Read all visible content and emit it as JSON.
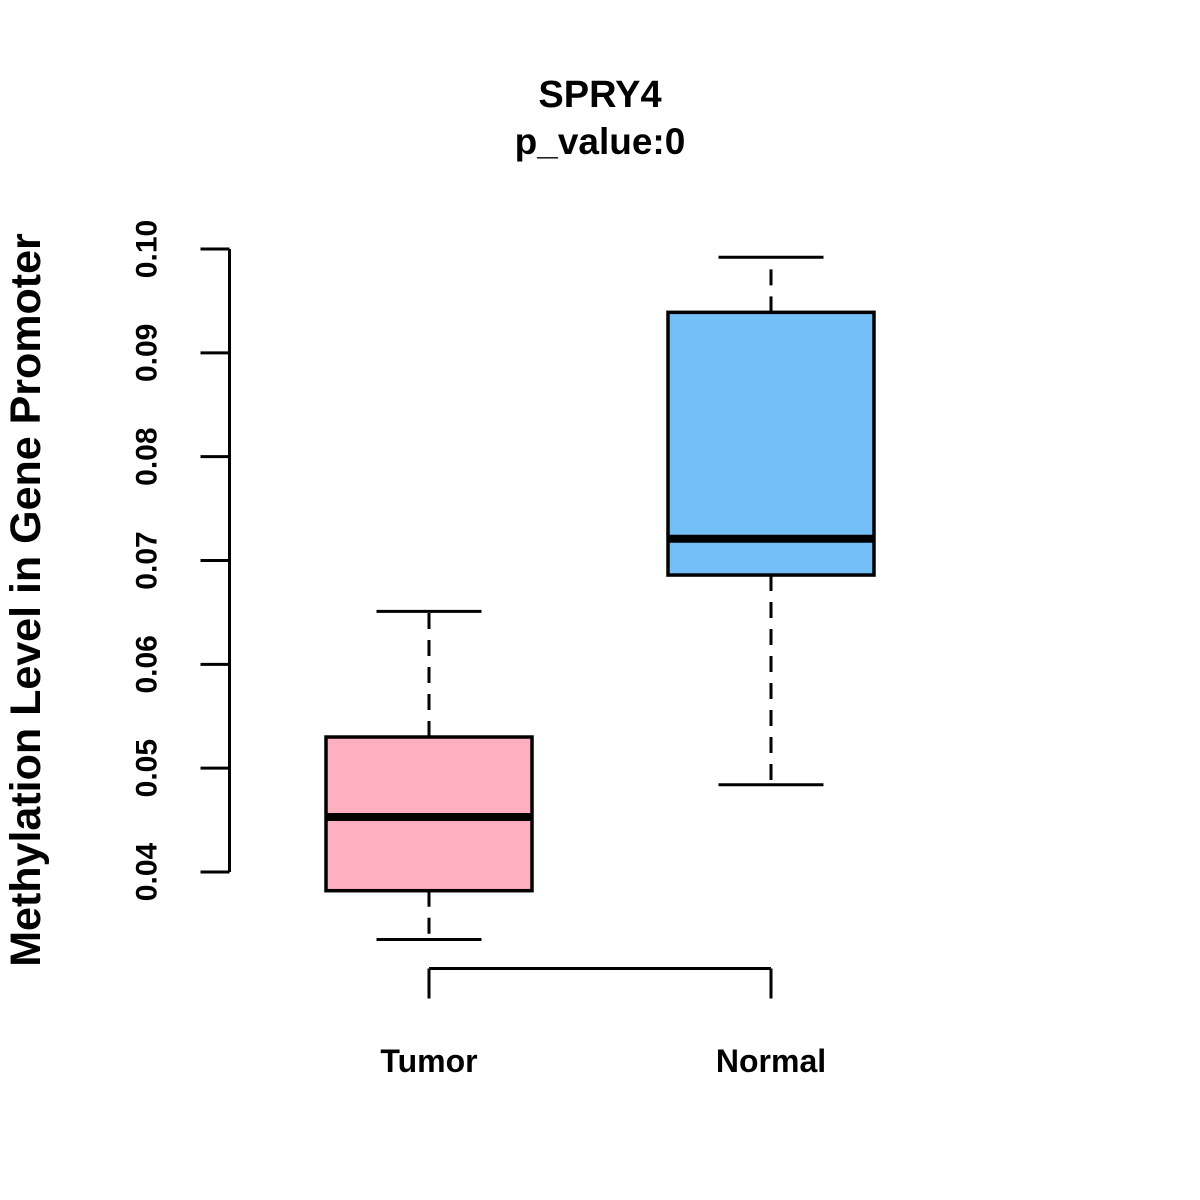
{
  "chart_data": {
    "type": "boxplot",
    "title": "SPRY4",
    "subtitle": "p_value:0",
    "ylabel": "Methylation Level in Gene Promoter",
    "xlabel": "",
    "categories": [
      "Tumor",
      "Normal"
    ],
    "series": [
      {
        "name": "Tumor",
        "fill": "#ffafc0",
        "whisker_low": 0.0335,
        "q1": 0.0382,
        "median": 0.0453,
        "q3": 0.053,
        "whisker_high": 0.0651,
        "outliers": []
      },
      {
        "name": "Normal",
        "fill": "#74bff7",
        "whisker_low": 0.0484,
        "q1": 0.0686,
        "median": 0.0721,
        "q3": 0.0939,
        "whisker_high": 0.0992,
        "outliers": []
      }
    ],
    "y_ticks": [
      0.04,
      0.05,
      0.06,
      0.07,
      0.08,
      0.09,
      0.1
    ],
    "y_tick_labels": [
      "0.04",
      "0.05",
      "0.06",
      "0.07",
      "0.08",
      "0.09",
      "0.10"
    ],
    "ylim": [
      0.031,
      0.101
    ],
    "grid": false,
    "legend": false,
    "colors": {
      "stroke": "#000000",
      "background": "#ffffff",
      "tumor_fill": "#ffafc0",
      "normal_fill": "#74bff7"
    }
  }
}
